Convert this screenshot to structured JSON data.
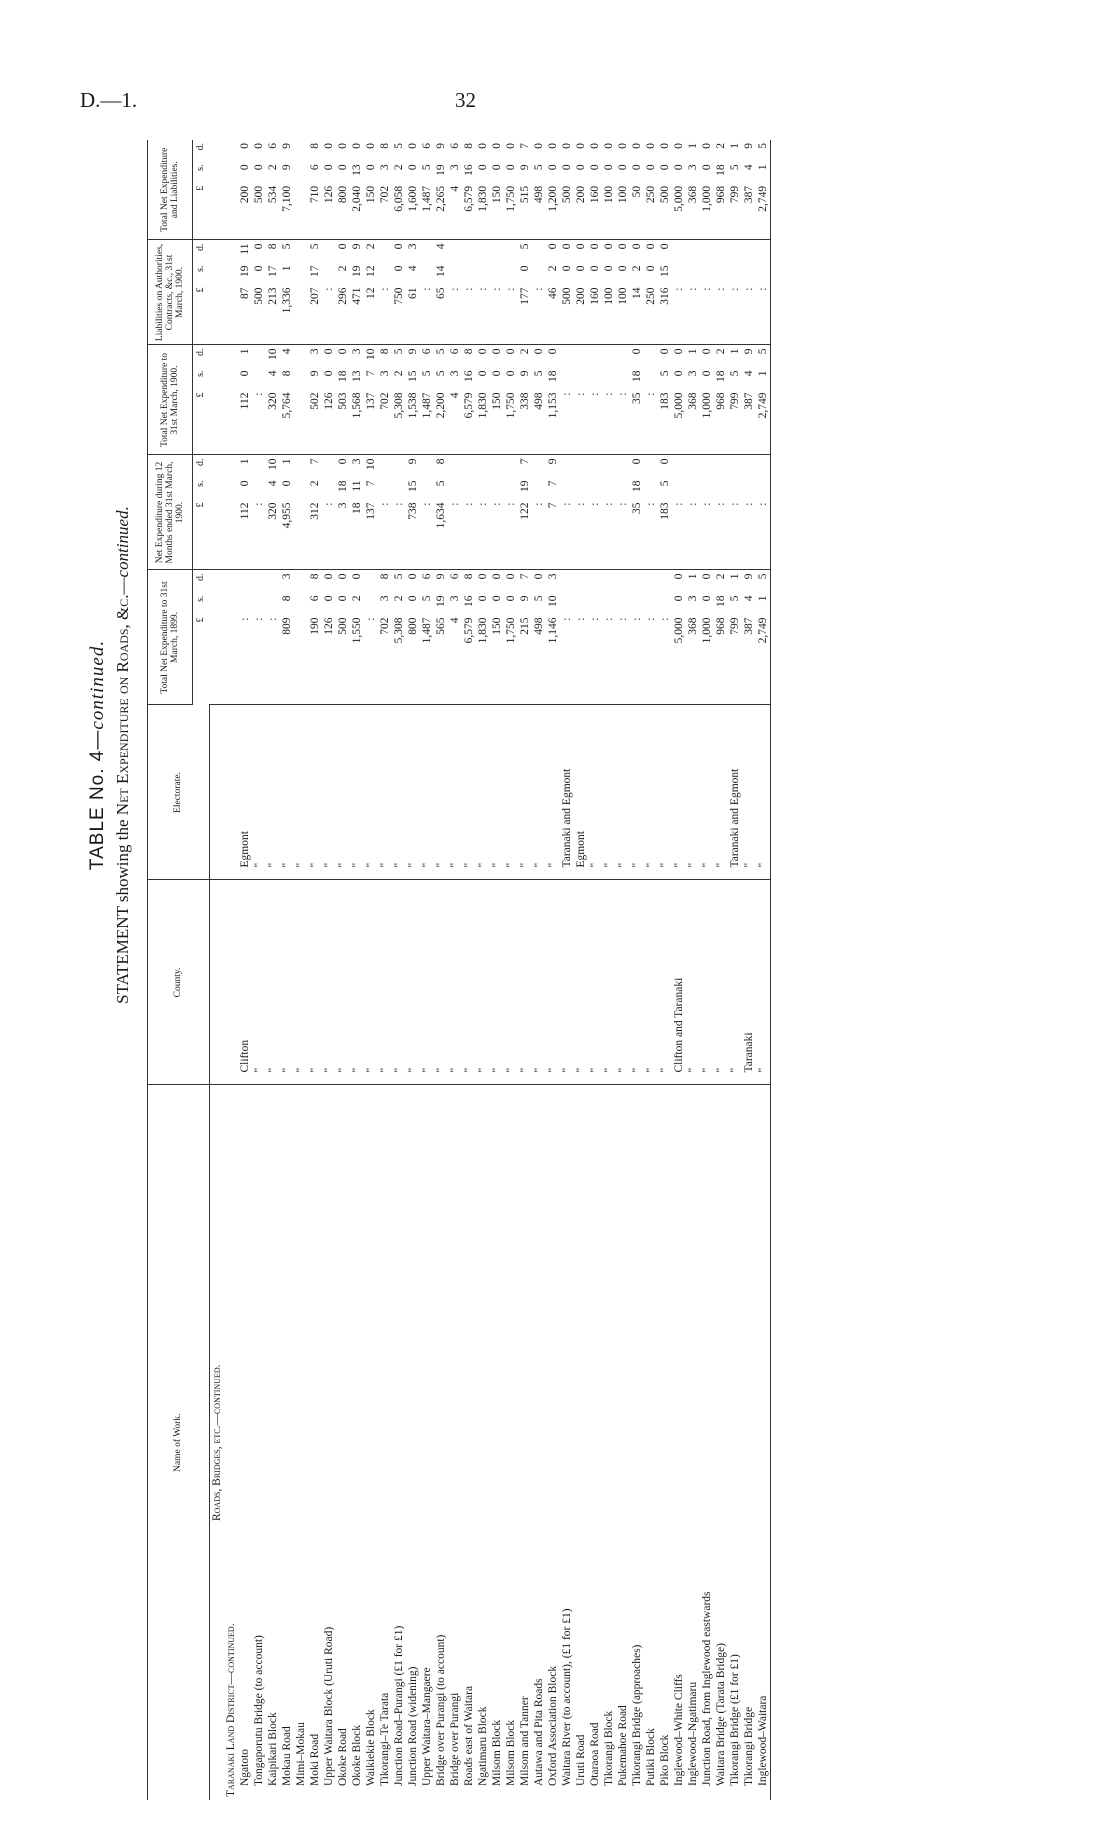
{
  "page": {
    "code": "D.—1.",
    "number": "32"
  },
  "title": {
    "table": "TABLE No. 4—",
    "table_cont": "continued.",
    "statement_prefix": "STATEMENT showing the ",
    "statement_main": "Net Expenditure on Roads, &c.—",
    "statement_cont": "continued."
  },
  "headers": {
    "name": "Name of Work.",
    "county": "County.",
    "electorate": "Electorate.",
    "p1899": "Total Net Expenditure to 31st March, 1899.",
    "p12m": "Net Expenditure during 12 Months ended 31st March, 1900.",
    "p1900": "Total Net Expenditure to 31st March, 1900.",
    "liab": "Liabilities on Authorities, Contracts, &c., 31st March, 1900.",
    "total": "Total Net Expenditure and Liabilities.",
    "units": [
      "£",
      "s.",
      "d."
    ]
  },
  "sections": {
    "s1": "Roads, Bridges, etc.—continued.",
    "s2": "Taranaki Land District—continued."
  },
  "rows": [
    {
      "name": "Ngatoto",
      "county": "Clifton",
      "electorate": "Egmont",
      "p1899": ":",
      "p12m": [
        "112",
        "0",
        "1"
      ],
      "p1900": [
        "112",
        "0",
        "1"
      ],
      "liab": [
        "87",
        "19",
        "11"
      ],
      "total": [
        "200",
        "0",
        "0"
      ]
    },
    {
      "name": "Tongaporutu Bridge (to account)",
      "county": "\"",
      "electorate": "\"",
      "p1899": ":",
      "p12m": ":",
      "p1900": ":",
      "liab": [
        "500",
        "0",
        "0"
      ],
      "total": [
        "500",
        "0",
        "0"
      ]
    },
    {
      "name": "Kaipikari Block",
      "county": "\"",
      "electorate": "\"",
      "p1899": ":",
      "p12m": [
        "320",
        "4",
        "10"
      ],
      "p1900": [
        "320",
        "4",
        "10"
      ],
      "liab": [
        "213",
        "17",
        "8"
      ],
      "total": [
        "534",
        "2",
        "6"
      ]
    },
    {
      "name": "Mokau Road",
      "county": "\"",
      "electorate": "\"",
      "p1899": [
        "809",
        "8",
        "3"
      ],
      "p12m": [
        "4,955",
        "0",
        "1"
      ],
      "p1900": [
        "5,764",
        "8",
        "4"
      ],
      "liab": [
        "1,336",
        "1",
        "5"
      ],
      "total": [
        "7,100",
        "9",
        "9"
      ]
    },
    {
      "name": "Mimi–Mokau",
      "county": "\"",
      "electorate": "\"",
      "p1899": "",
      "p12m": "",
      "p1900": "",
      "liab": "",
      "total": ""
    },
    {
      "name": "Moki Road",
      "county": "\"",
      "electorate": "\"",
      "p1899": [
        "190",
        "6",
        "8"
      ],
      "p12m": [
        "312",
        "2",
        "7"
      ],
      "p1900": [
        "502",
        "9",
        "3"
      ],
      "liab": [
        "207",
        "17",
        "5"
      ],
      "total": [
        "710",
        "6",
        "8"
      ]
    },
    {
      "name": "Upper Waitara Block (Uruti Road)",
      "county": "\"",
      "electorate": "\"",
      "p1899": [
        "126",
        "0",
        "0"
      ],
      "p12m": ":",
      "p1900": [
        "126",
        "0",
        "0"
      ],
      "liab": ":",
      "total": [
        "126",
        "0",
        "0"
      ]
    },
    {
      "name": "Okoke Road",
      "county": "\"",
      "electorate": "\"",
      "p1899": [
        "500",
        "0",
        "0"
      ],
      "p12m": [
        "3",
        "18",
        "0"
      ],
      "p1900": [
        "503",
        "18",
        "0"
      ],
      "liab": [
        "296",
        "2",
        "0"
      ],
      "total": [
        "800",
        "0",
        "0"
      ]
    },
    {
      "name": "Okoke Block",
      "county": "\"",
      "electorate": "\"",
      "p1899": [
        "1,550",
        "2",
        "0"
      ],
      "p12m": [
        "18",
        "11",
        "3"
      ],
      "p1900": [
        "1,568",
        "13",
        "3"
      ],
      "liab": [
        "471",
        "19",
        "9"
      ],
      "total": [
        "2,040",
        "13",
        "0"
      ]
    },
    {
      "name": "Waikiekie Block",
      "county": "\"",
      "electorate": "\"",
      "p1899": ":",
      "p12m": [
        "137",
        "7",
        "10"
      ],
      "p1900": [
        "137",
        "7",
        "10"
      ],
      "liab": [
        "12",
        "12",
        "2"
      ],
      "total": [
        "150",
        "0",
        "0"
      ]
    },
    {
      "name": "Tikorangi–Te Tarata",
      "county": "\"",
      "electorate": "\"",
      "p1899": [
        "702",
        "3",
        "8"
      ],
      "p12m": ":",
      "p1900": [
        "702",
        "3",
        "8"
      ],
      "liab": ":",
      "total": [
        "702",
        "3",
        "8"
      ]
    },
    {
      "name": "Junction Road–Purangi (£1 for £1)",
      "county": "\"",
      "electorate": "\"",
      "p1899": [
        "5,308",
        "2",
        "5"
      ],
      "p12m": ":",
      "p1900": [
        "5,308",
        "2",
        "5"
      ],
      "liab": [
        "750",
        "0",
        "0"
      ],
      "total": [
        "6,058",
        "2",
        "5"
      ]
    },
    {
      "name": "Junction Road (widening)",
      "county": "\"",
      "electorate": "\"",
      "p1899": [
        "800",
        "0",
        "0"
      ],
      "p12m": [
        "738",
        "15",
        "9"
      ],
      "p1900": [
        "1,538",
        "15",
        "9"
      ],
      "liab": [
        "61",
        "4",
        "3"
      ],
      "total": [
        "1,600",
        "0",
        "0"
      ]
    },
    {
      "name": "Upper Waitara–Mangaere",
      "county": "\"",
      "electorate": "\"",
      "p1899": [
        "1,487",
        "5",
        "6"
      ],
      "p12m": ":",
      "p1900": [
        "1,487",
        "5",
        "6"
      ],
      "liab": ":",
      "total": [
        "1,487",
        "5",
        "6"
      ]
    },
    {
      "name": "Bridge over Purangi (to account)",
      "county": "\"",
      "electorate": "\"",
      "p1899": [
        "565",
        "19",
        "9"
      ],
      "p12m": [
        "1,634",
        "5",
        "8"
      ],
      "p1900": [
        "2,200",
        "5",
        "5"
      ],
      "liab": [
        "65",
        "14",
        "4"
      ],
      "total": [
        "2,265",
        "19",
        "9"
      ]
    },
    {
      "name": "Bridge over Purangi",
      "county": "\"",
      "electorate": "\"",
      "p1899": [
        "4",
        "3",
        "6"
      ],
      "p12m": ":",
      "p1900": [
        "4",
        "3",
        "6"
      ],
      "liab": ":",
      "total": [
        "4",
        "3",
        "6"
      ]
    },
    {
      "name": "Roads east of Waitara",
      "county": "\"",
      "electorate": "\"",
      "p1899": [
        "6,579",
        "16",
        "8"
      ],
      "p12m": ":",
      "p1900": [
        "6,579",
        "16",
        "8"
      ],
      "liab": ":",
      "total": [
        "6,579",
        "16",
        "8"
      ]
    },
    {
      "name": "Ngatimaru Block",
      "county": "\"",
      "electorate": "\"",
      "p1899": [
        "1,830",
        "0",
        "0"
      ],
      "p12m": ":",
      "p1900": [
        "1,830",
        "0",
        "0"
      ],
      "liab": ":",
      "total": [
        "1,830",
        "0",
        "0"
      ]
    },
    {
      "name": "Milsom Block",
      "county": "\"",
      "electorate": "\"",
      "p1899": [
        "150",
        "0",
        "0"
      ],
      "p12m": ":",
      "p1900": [
        "150",
        "0",
        "0"
      ],
      "liab": ":",
      "total": [
        "150",
        "0",
        "0"
      ]
    },
    {
      "name": "Milsom Block",
      "county": "\"",
      "electorate": "\"",
      "p1899": [
        "1,750",
        "0",
        "0"
      ],
      "p12m": ":",
      "p1900": [
        "1,750",
        "0",
        "0"
      ],
      "liab": ":",
      "total": [
        "1,750",
        "0",
        "0"
      ]
    },
    {
      "name": "Milsom and Tanner",
      "county": "\"",
      "electorate": "\"",
      "p1899": [
        "215",
        "9",
        "7"
      ],
      "p12m": [
        "122",
        "19",
        "7"
      ],
      "p1900": [
        "338",
        "9",
        "2"
      ],
      "liab": [
        "177",
        "0",
        "5"
      ],
      "total": [
        "515",
        "9",
        "7"
      ]
    },
    {
      "name": "Autawa and Pita Roads",
      "county": "\"",
      "electorate": "\"",
      "p1899": [
        "498",
        "5",
        "0"
      ],
      "p12m": ":",
      "p1900": [
        "498",
        "5",
        "0"
      ],
      "liab": ":",
      "total": [
        "498",
        "5",
        "0"
      ]
    },
    {
      "name": "Oxford Association Block",
      "county": "\"",
      "electorate": "\"",
      "p1899": [
        "1,146",
        "10",
        "3"
      ],
      "p12m": [
        "7",
        "7",
        "9"
      ],
      "p1900": [
        "1,153",
        "18",
        "0"
      ],
      "liab": [
        "46",
        "2",
        "0"
      ],
      "total": [
        "1,200",
        "0",
        "0"
      ]
    },
    {
      "name": "Waitara River (to account), (£1 for £1)",
      "county": "\"",
      "electorate": "Taranaki and Egmont",
      "p1899": ":",
      "p12m": ":",
      "p1900": ":",
      "liab": [
        "500",
        "0",
        "0"
      ],
      "total": [
        "500",
        "0",
        "0"
      ]
    },
    {
      "name": "Uruti Road",
      "county": "\"",
      "electorate": "Egmont",
      "p1899": ":",
      "p12m": ":",
      "p1900": ":",
      "liab": [
        "200",
        "0",
        "0"
      ],
      "total": [
        "200",
        "0",
        "0"
      ]
    },
    {
      "name": "Otaraoa Road",
      "county": "\"",
      "electorate": "\"",
      "p1899": ":",
      "p12m": ":",
      "p1900": ":",
      "liab": [
        "160",
        "0",
        "0"
      ],
      "total": [
        "160",
        "0",
        "0"
      ]
    },
    {
      "name": "Tikorangi Block",
      "county": "\"",
      "electorate": "\"",
      "p1899": ":",
      "p12m": ":",
      "p1900": ":",
      "liab": [
        "100",
        "0",
        "0"
      ],
      "total": [
        "100",
        "0",
        "0"
      ]
    },
    {
      "name": "Pukemahoe Road",
      "county": "\"",
      "electorate": "\"",
      "p1899": ":",
      "p12m": ":",
      "p1900": ":",
      "liab": [
        "100",
        "0",
        "0"
      ],
      "total": [
        "100",
        "0",
        "0"
      ]
    },
    {
      "name": "Tikorangi Bridge (approaches)",
      "county": "\"",
      "electorate": "\"",
      "p1899": ":",
      "p12m": [
        "35",
        "18",
        "0"
      ],
      "p1900": [
        "35",
        "18",
        "0"
      ],
      "liab": [
        "14",
        "2",
        "0"
      ],
      "total": [
        "50",
        "0",
        "0"
      ]
    },
    {
      "name": "Putiki Block",
      "county": "\"",
      "electorate": "\"",
      "p1899": ":",
      "p12m": ":",
      "p1900": ":",
      "liab": [
        "250",
        "0",
        "0"
      ],
      "total": [
        "250",
        "0",
        "0"
      ]
    },
    {
      "name": "Piko Block",
      "county": "\"",
      "electorate": "\"",
      "p1899": ":",
      "p12m": [
        "183",
        "5",
        "0"
      ],
      "p1900": [
        "183",
        "5",
        "0"
      ],
      "liab": [
        "316",
        "15",
        "0"
      ],
      "total": [
        "500",
        "0",
        "0"
      ]
    },
    {
      "name": "Inglewood–White Cliffs",
      "county": "Clifton and Taranaki",
      "electorate": "\"",
      "p1899": [
        "5,000",
        "0",
        "0"
      ],
      "p12m": ":",
      "p1900": [
        "5,000",
        "0",
        "0"
      ],
      "liab": ":",
      "total": [
        "5,000",
        "0",
        "0"
      ]
    },
    {
      "name": "Inglewood–Ngatimaru",
      "county": "\"",
      "electorate": "\"",
      "p1899": [
        "368",
        "3",
        "1"
      ],
      "p12m": ":",
      "p1900": [
        "368",
        "3",
        "1"
      ],
      "liab": ":",
      "total": [
        "368",
        "3",
        "1"
      ]
    },
    {
      "name": "Junction Road, from Inglewood eastwards",
      "county": "\"",
      "electorate": "\"",
      "p1899": [
        "1,000",
        "0",
        "0"
      ],
      "p12m": ":",
      "p1900": [
        "1,000",
        "0",
        "0"
      ],
      "liab": ":",
      "total": [
        "1,000",
        "0",
        "0"
      ]
    },
    {
      "name": "Waitara Bridge (Tarata Bridge)",
      "county": "\"",
      "electorate": "\"",
      "p1899": [
        "968",
        "18",
        "2"
      ],
      "p12m": ":",
      "p1900": [
        "968",
        "18",
        "2"
      ],
      "liab": ":",
      "total": [
        "968",
        "18",
        "2"
      ]
    },
    {
      "name": "Tikorangi Bridge (£1 for £1)",
      "county": "\"",
      "electorate": "Taranaki and Egmont",
      "p1899": [
        "799",
        "5",
        "1"
      ],
      "p12m": ":",
      "p1900": [
        "799",
        "5",
        "1"
      ],
      "liab": ":",
      "total": [
        "799",
        "5",
        "1"
      ]
    },
    {
      "name": "Tikorangi Bridge",
      "county": "Taranaki",
      "electorate": "\"",
      "p1899": [
        "387",
        "4",
        "9"
      ],
      "p12m": ":",
      "p1900": [
        "387",
        "4",
        "9"
      ],
      "liab": ":",
      "total": [
        "387",
        "4",
        "9"
      ]
    },
    {
      "name": "Inglewood–Waitara",
      "county": "\"",
      "electorate": "\"",
      "p1899": [
        "2,749",
        "1",
        "5"
      ],
      "p12m": ":",
      "p1900": [
        "2,749",
        "1",
        "5"
      ],
      "liab": ":",
      "total": [
        "2,749",
        "1",
        "5"
      ]
    }
  ]
}
